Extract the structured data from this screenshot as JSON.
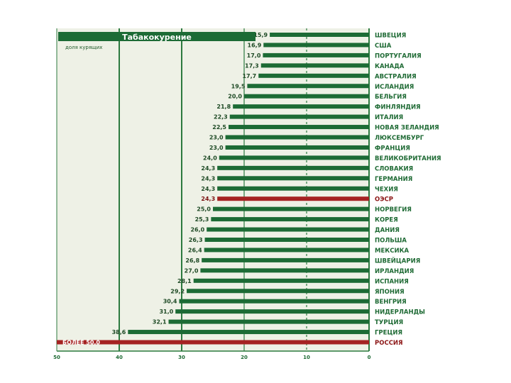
{
  "chart_data": {
    "type": "bar",
    "orientation": "horizontal",
    "title": "Табакокурение",
    "subtitle": "доля курящих",
    "xlim": [
      0,
      50
    ],
    "x_reversed": true,
    "x_ticks": [
      "50",
      "40",
      "30",
      "20",
      "10",
      "0"
    ],
    "categories": [
      "ШВЕЦИЯ",
      "США",
      "ПОРТУГАЛИЯ",
      "КАНАДА",
      "АВСТРАЛИЯ",
      "ИСЛАНДИЯ",
      "БЕЛЬГИЯ",
      "ФИНЛЯНДИЯ",
      "ИТАЛИЯ",
      "НОВАЯ ЗЕЛАНДИЯ",
      "ЛЮКСЕМБУРГ",
      "ФРАНЦИЯ",
      "ВЕЛИКОБРИТАНИЯ",
      "СЛОВАКИЯ",
      "ГЕРМАНИЯ",
      "ЧЕХИЯ",
      "ОЭСР",
      "НОРВЕГИЯ",
      "КОРЕЯ",
      "ДАНИЯ",
      "ПОЛЬША",
      "МЕКСИКА",
      "ШВЕЙЦАРИЯ",
      "ИРЛАНДИЯ",
      "ИСПАНИЯ",
      "ЯПОНИЯ",
      "ВЕНГРИЯ",
      "НИДЕРЛАНДЫ",
      "ТУРЦИЯ",
      "ГРЕЦИЯ",
      "РОССИЯ"
    ],
    "values": [
      15.9,
      16.9,
      17.0,
      17.3,
      17.7,
      19.5,
      20.0,
      21.8,
      22.3,
      22.5,
      23.0,
      23.0,
      24.0,
      24.3,
      24.3,
      24.3,
      24.3,
      25.0,
      25.3,
      26.0,
      26.3,
      26.4,
      26.8,
      27.0,
      28.1,
      29.2,
      30.4,
      31.0,
      32.1,
      38.6,
      50.0
    ],
    "value_labels": [
      "15,9",
      "16,9",
      "17,0",
      "17,3",
      "17,7",
      "19,5",
      "20,0",
      "21,8",
      "22,3",
      "22,5",
      "23,0",
      "23,0",
      "24,0",
      "24,3",
      "24,3",
      "24,3",
      "24,3",
      "25,0",
      "25,3",
      "26,0",
      "26,3",
      "26,4",
      "26,8",
      "27,0",
      "28,1",
      "29,2",
      "30,4",
      "31,0",
      "32,1",
      "38,6",
      "БОЛЕЕ 50,0"
    ],
    "highlight": [
      "ОЭСР",
      "РОССИЯ"
    ],
    "grid": true,
    "colors": {
      "bar": "#1c6b35",
      "highlight_bar": "#a52222",
      "text": "#1e6a34",
      "highlight_text": "#8c1515",
      "plot_bg": "#eef1e6",
      "gridline": "#2c7a3f"
    }
  }
}
